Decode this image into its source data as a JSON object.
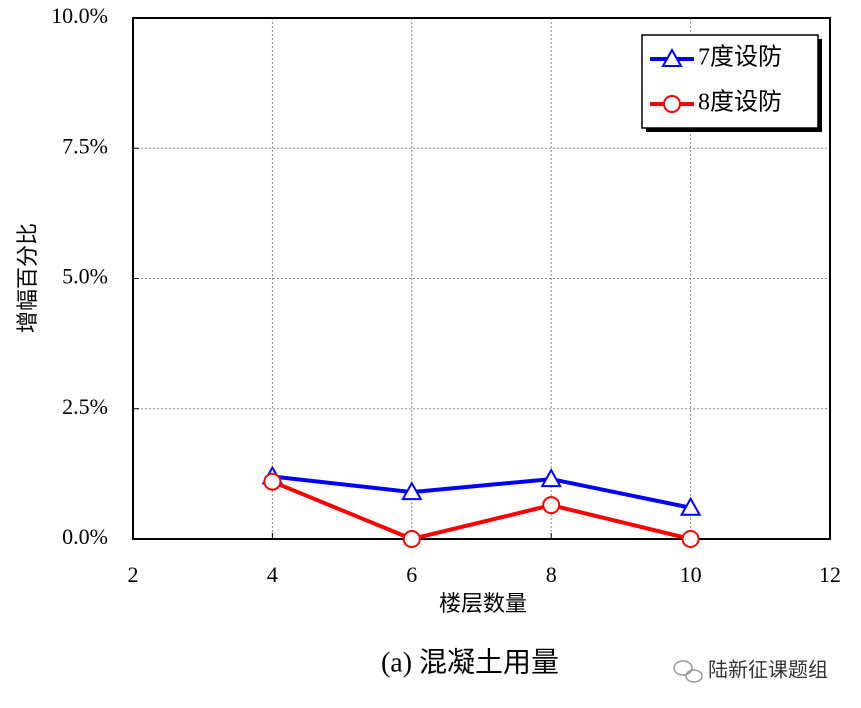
{
  "chart_data": {
    "type": "line",
    "y_label": "增幅百分比",
    "x_label": "楼层数量",
    "caption": "(a)  混凝土用量",
    "watermark": "陆新征课题组",
    "x": [
      4,
      6,
      8,
      10
    ],
    "series": [
      {
        "name": "7度设防",
        "color": "#0000ff",
        "marker": "triangle",
        "values": [
          1.2,
          0.9,
          1.15,
          0.6
        ]
      },
      {
        "name": "8度设防",
        "color": "#ff0000",
        "marker": "circle",
        "values": [
          1.1,
          0.0,
          0.65,
          0.0
        ]
      }
    ],
    "xlim": [
      2,
      12
    ],
    "xticks": [
      2,
      4,
      6,
      8,
      10,
      12
    ],
    "ylim": [
      0,
      10
    ],
    "yticks": [
      {
        "value": 0,
        "label": "0.0%"
      },
      {
        "value": 2.5,
        "label": "2.5%"
      },
      {
        "value": 5,
        "label": "5.0%"
      },
      {
        "value": 7.5,
        "label": "7.5%"
      },
      {
        "value": 10,
        "label": "10.0%"
      }
    ],
    "grid": true,
    "legend": "upper right"
  }
}
